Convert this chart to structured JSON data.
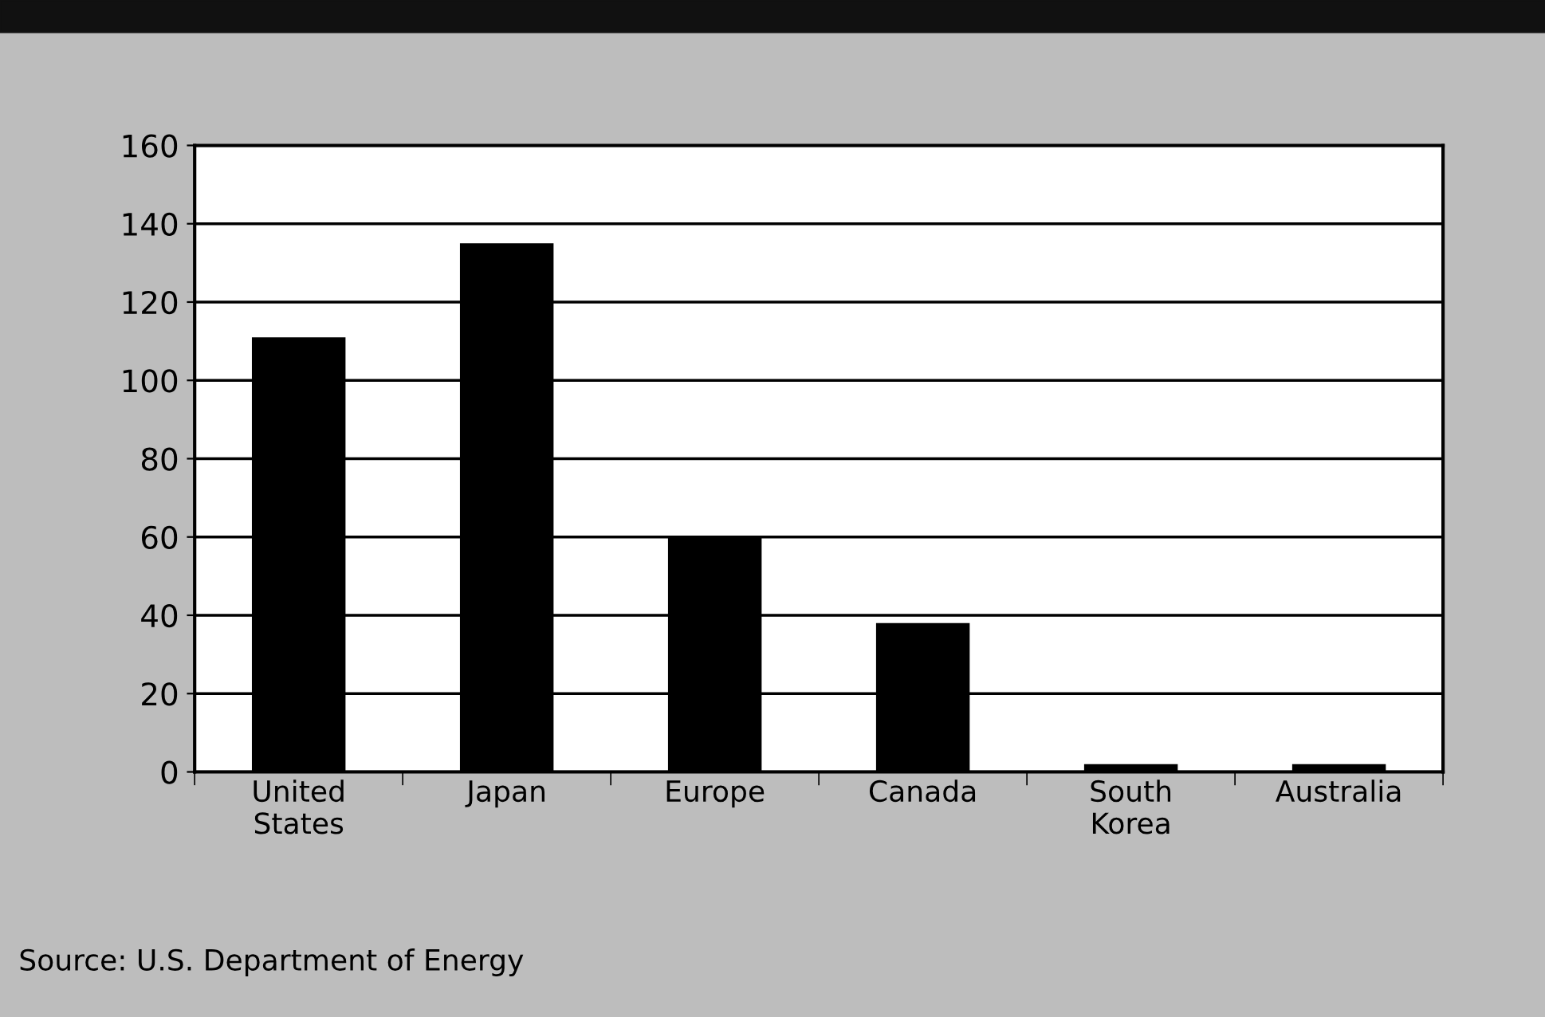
{
  "chart_data": {
    "type": "bar",
    "categories": [
      "United\nStates",
      "Japan",
      "Europe",
      "Canada",
      "South\nKorea",
      "Australia"
    ],
    "values": [
      111,
      135,
      60,
      38,
      2,
      2
    ],
    "color": "#000000",
    "ylim": [
      0,
      160
    ],
    "yticks": [
      0,
      20,
      40,
      60,
      80,
      100,
      120,
      140,
      160
    ],
    "grid": "y",
    "annotations": [
      "Source: U.S. Department of Energy"
    ]
  }
}
